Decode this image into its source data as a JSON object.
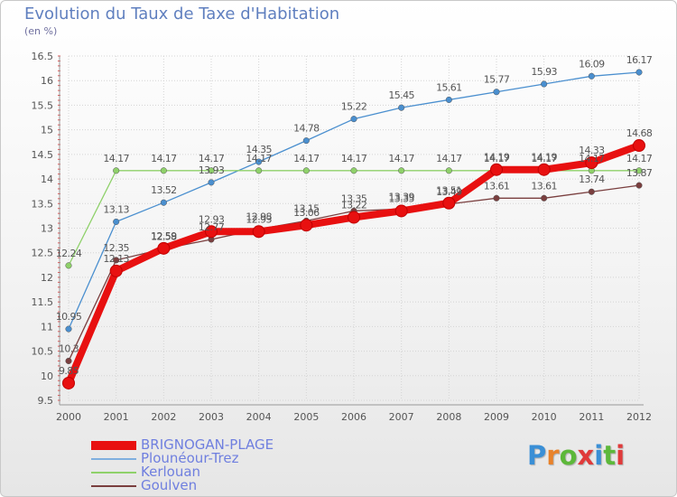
{
  "header": {
    "title": "Evolution du Taux de Taxe d'Habitation",
    "subtitle": "(en %)"
  },
  "branding": {
    "text": "Proxiti",
    "letter_colors": [
      "#3a8fd6",
      "#e8822a",
      "#5db83a",
      "#e03a3a",
      "#3a8fd6",
      "#5db83a",
      "#e03a3a"
    ]
  },
  "chart_data": {
    "type": "line",
    "title": "Evolution du Taux de Taxe d'Habitation",
    "ylabel": "(en %)",
    "xlabel": "",
    "x": [
      "2000",
      "2001",
      "2002",
      "2003",
      "2004",
      "2005",
      "2006",
      "2007",
      "2008",
      "2009",
      "2010",
      "2011",
      "2012"
    ],
    "ylim": [
      9.5,
      16.5
    ],
    "yticks": [
      "9.5",
      "10",
      "10.5",
      "11",
      "11.5",
      "12",
      "12.5",
      "13",
      "13.5",
      "14",
      "14.5",
      "15",
      "15.5",
      "16",
      "16.5"
    ],
    "grid": true,
    "legend": "bottom-left",
    "series": [
      {
        "name": "Plounéour-Trez",
        "color": "#4a8fcf",
        "values": [
          10.95,
          13.13,
          13.52,
          13.93,
          14.35,
          14.78,
          15.22,
          15.45,
          15.61,
          15.77,
          15.93,
          16.09,
          16.17
        ],
        "labels": [
          "10.95",
          "13.13",
          "13.52",
          "13.93",
          "14.35",
          "14.78",
          "15.22",
          "15.45",
          "15.61",
          "15.77",
          "15.93",
          "16.09",
          "16.17"
        ]
      },
      {
        "name": "Kerlouan",
        "color": "#8fd16a",
        "values": [
          12.24,
          14.17,
          14.17,
          14.17,
          14.17,
          14.17,
          14.17,
          14.17,
          14.17,
          14.17,
          14.17,
          14.17,
          14.17
        ],
        "labels": [
          "12.24",
          "14.17",
          "14.17",
          "14.17",
          "14.17",
          "14.17",
          "14.17",
          "14.17",
          "14.17",
          "14.17",
          "14.17",
          "14.17",
          "14.17"
        ]
      },
      {
        "name": "Goulven",
        "color": "#7a3f3f",
        "values": [
          10.3,
          12.35,
          12.58,
          12.77,
          12.98,
          13.15,
          13.35,
          13.39,
          13.49,
          13.61,
          13.61,
          13.74,
          13.87
        ],
        "labels": [
          "10.3",
          "12.35",
          "12.58",
          "12.77",
          "12.98",
          "13.15",
          "13.35",
          "13.39",
          "13.49",
          "13.61",
          "13.61",
          "13.74",
          "13.87"
        ]
      },
      {
        "name": "BRIGNOGAN-PLAGE",
        "color": "#e81010",
        "values": [
          9.85,
          12.13,
          12.59,
          12.93,
          12.93,
          13.06,
          13.22,
          13.35,
          13.51,
          14.19,
          14.19,
          14.33,
          14.68
        ],
        "labels": [
          "9.85",
          "12.13",
          "12.59",
          "12.93",
          "12.93",
          "13.06",
          "13.22",
          "13.35",
          "13.51",
          "14.19",
          "14.19",
          "14.33",
          "14.68"
        ]
      }
    ]
  },
  "legend": {
    "items": [
      {
        "name": "BRIGNOGAN-PLAGE",
        "color": "#e81010"
      },
      {
        "name": "Plounéour-Trez",
        "color": "#7fafdf"
      },
      {
        "name": "Kerlouan",
        "color": "#8fd16a"
      },
      {
        "name": "Goulven",
        "color": "#7a3f3f"
      }
    ]
  }
}
